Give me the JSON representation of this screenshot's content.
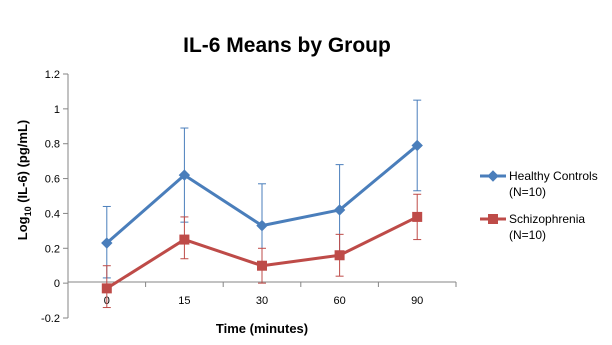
{
  "chart_data": {
    "type": "line",
    "title": "IL-6 Means by Group",
    "xlabel": "Time (minutes)",
    "ylabel_prefix": "Log",
    "ylabel_subscript": "10",
    "ylabel_suffix": " (IL-6) (pg/mL)",
    "categories": [
      "0",
      "15",
      "30",
      "60",
      "90"
    ],
    "ylim": [
      -0.2,
      1.2
    ],
    "yticks": [
      -0.2,
      0,
      0.2,
      0.4,
      0.6,
      0.8,
      1,
      1.2
    ],
    "ytick_labels": [
      "-0.2",
      "0",
      "0.2",
      "0.4",
      "0.6",
      "0.8",
      "1",
      "1.2"
    ],
    "grid": false,
    "legend_position": "right",
    "series": [
      {
        "name": "Healthy Controls",
        "name_line2": "(N=10)",
        "color": "#4a7ebb",
        "marker": "diamond",
        "values": [
          0.23,
          0.62,
          0.33,
          0.42,
          0.79
        ],
        "err_upper": [
          0.44,
          0.89,
          0.57,
          0.68,
          1.05
        ],
        "err_lower": [
          0.03,
          0.35,
          0.09,
          0.16,
          0.53
        ]
      },
      {
        "name": "Schizophrenia",
        "name_line2": "(N=10)",
        "color": "#be4b48",
        "marker": "square",
        "values": [
          -0.03,
          0.25,
          0.1,
          0.16,
          0.38
        ],
        "err_upper": [
          0.1,
          0.38,
          0.2,
          0.28,
          0.51
        ],
        "err_lower": [
          -0.14,
          0.14,
          0.0,
          0.04,
          0.25
        ]
      }
    ]
  }
}
